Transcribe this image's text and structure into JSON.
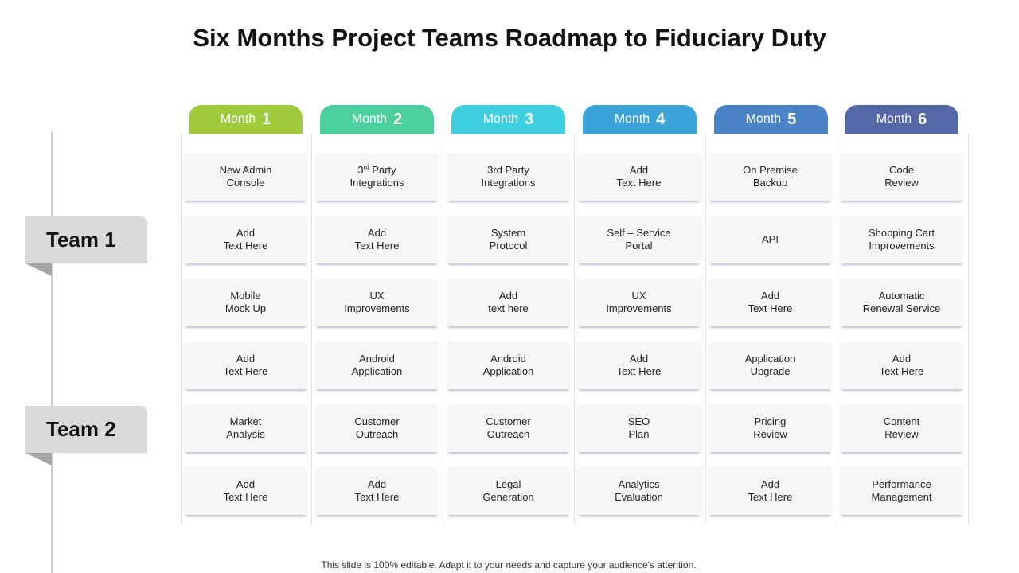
{
  "title": "Six Months Project Teams Roadmap to Fiduciary Duty",
  "teams": [
    "Team 1",
    "Team 2"
  ],
  "months": [
    {
      "label": "Month",
      "num": "1",
      "color": "#9fcb3c"
    },
    {
      "label": "Month",
      "num": "2",
      "color": "#4ccf9f"
    },
    {
      "label": "Month",
      "num": "3",
      "color": "#3ecfe0"
    },
    {
      "label": "Month",
      "num": "4",
      "color": "#3ba3d9"
    },
    {
      "label": "Month",
      "num": "5",
      "color": "#4b84c6"
    },
    {
      "label": "Month",
      "num": "6",
      "color": "#5468a8"
    }
  ],
  "grid": [
    [
      {
        "l1": "New Admin",
        "l2": "Console"
      },
      {
        "l1": "3",
        "sup": "rd",
        "l1b": " Party",
        "l2": "Integrations"
      },
      {
        "l1": "3rd Party",
        "l2": "Integrations"
      },
      {
        "l1": "Add",
        "l2": "Text Here"
      },
      {
        "l1": "On Premise",
        "l2": "Backup"
      },
      {
        "l1": "Code",
        "l2": "Review"
      }
    ],
    [
      {
        "l1": "Add",
        "l2": "Text Here"
      },
      {
        "l1": "Add",
        "l2": "Text Here"
      },
      {
        "l1": "System",
        "l2": "Protocol"
      },
      {
        "l1": "Self – Service",
        "l2": "Portal"
      },
      {
        "l1": "API"
      },
      {
        "l1": "Shopping Cart",
        "l2": "Improvements"
      }
    ],
    [
      {
        "l1": "Mobile",
        "l2": "Mock Up"
      },
      {
        "l1": "UX",
        "l2": "Improvements"
      },
      {
        "l1": "Add",
        "l2": "text here"
      },
      {
        "l1": "UX",
        "l2": "Improvements"
      },
      {
        "l1": "Add",
        "l2": "Text Here"
      },
      {
        "l1": "Automatic",
        "l2": "Renewal Service"
      }
    ],
    [
      {
        "l1": "Add",
        "l2": "Text Here"
      },
      {
        "l1": "Android",
        "l2": "Application"
      },
      {
        "l1": "Android",
        "l2": "Application"
      },
      {
        "l1": "Add",
        "l2": "Text Here"
      },
      {
        "l1": "Application",
        "l2": "Upgrade"
      },
      {
        "l1": "Add",
        "l2": "Text Here"
      }
    ],
    [
      {
        "l1": "Market",
        "l2": "Analysis"
      },
      {
        "l1": "Customer",
        "l2": "Outreach"
      },
      {
        "l1": "Customer",
        "l2": "Outreach"
      },
      {
        "l1": "SEO",
        "l2": "Plan"
      },
      {
        "l1": "Pricing",
        "l2": "Review"
      },
      {
        "l1": "Content",
        "l2": "Review"
      }
    ],
    [
      {
        "l1": "Add",
        "l2": "Text Here"
      },
      {
        "l1": "Add",
        "l2": "Text Here"
      },
      {
        "l1": "Legal",
        "l2": "Generation"
      },
      {
        "l1": "Analytics",
        "l2": "Evaluation"
      },
      {
        "l1": "Add",
        "l2": "Text Here"
      },
      {
        "l1": "Performance",
        "l2": "Management"
      }
    ]
  ],
  "footer": "This slide is 100% editable. Adapt it to your needs and capture your audience's attention."
}
